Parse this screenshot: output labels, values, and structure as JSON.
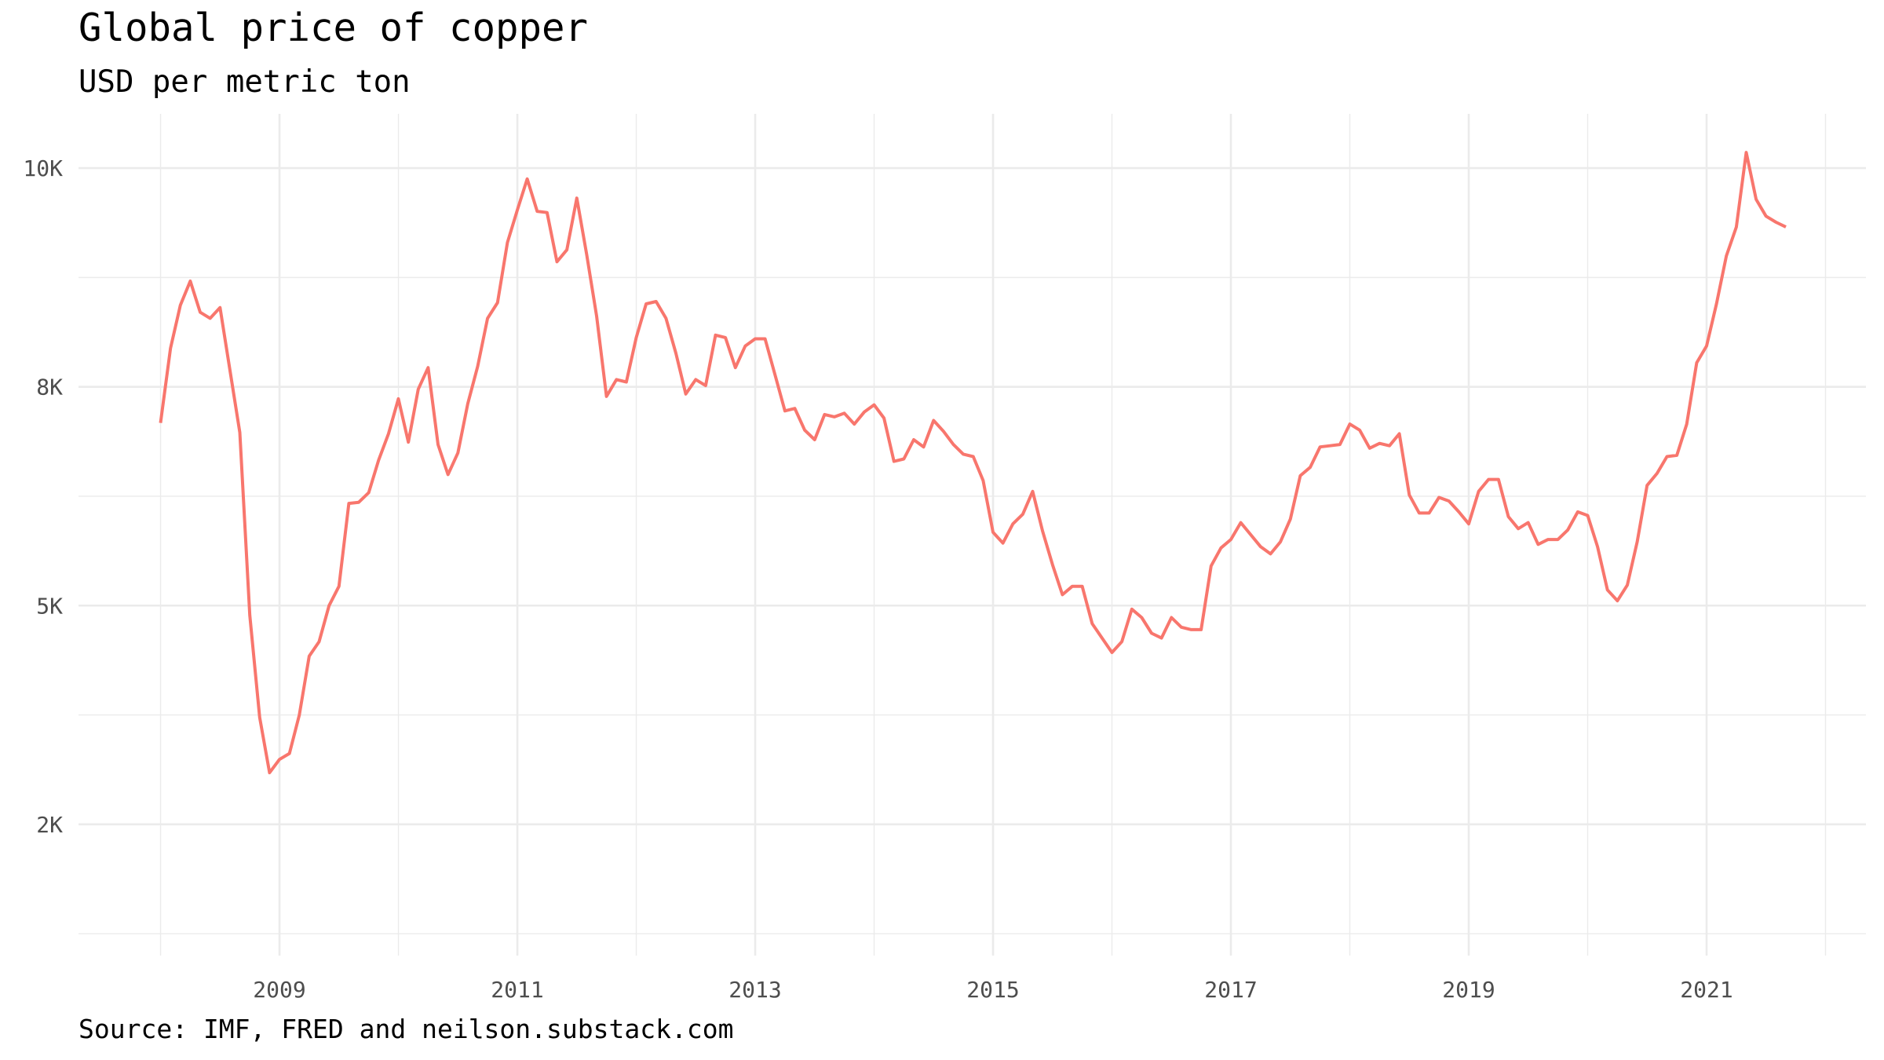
{
  "chart_data": {
    "type": "line",
    "title": "Global price of copper",
    "subtitle": "USD per metric ton",
    "caption": "Source: IMF, FRED and neilson.substack.com",
    "x": [
      "2008-01",
      "2008-02",
      "2008-03",
      "2008-04",
      "2008-05",
      "2008-06",
      "2008-07",
      "2008-08",
      "2008-09",
      "2008-10",
      "2008-11",
      "2008-12",
      "2009-01",
      "2009-02",
      "2009-03",
      "2009-04",
      "2009-05",
      "2009-06",
      "2009-07",
      "2009-08",
      "2009-09",
      "2009-10",
      "2009-11",
      "2009-12",
      "2010-01",
      "2010-02",
      "2010-03",
      "2010-04",
      "2010-05",
      "2010-06",
      "2010-07",
      "2010-08",
      "2010-09",
      "2010-10",
      "2010-11",
      "2010-12",
      "2011-01",
      "2011-02",
      "2011-03",
      "2011-04",
      "2011-05",
      "2011-06",
      "2011-07",
      "2011-08",
      "2011-09",
      "2011-10",
      "2011-11",
      "2011-12",
      "2012-01",
      "2012-02",
      "2012-03",
      "2012-04",
      "2012-05",
      "2012-06",
      "2012-07",
      "2012-08",
      "2012-09",
      "2012-10",
      "2012-11",
      "2012-12",
      "2013-01",
      "2013-02",
      "2013-03",
      "2013-04",
      "2013-05",
      "2013-06",
      "2013-07",
      "2013-08",
      "2013-09",
      "2013-10",
      "2013-11",
      "2013-12",
      "2014-01",
      "2014-02",
      "2014-03",
      "2014-04",
      "2014-05",
      "2014-06",
      "2014-07",
      "2014-08",
      "2014-09",
      "2014-10",
      "2014-11",
      "2014-12",
      "2015-01",
      "2015-02",
      "2015-03",
      "2015-04",
      "2015-05",
      "2015-06",
      "2015-07",
      "2015-08",
      "2015-09",
      "2015-10",
      "2015-11",
      "2015-12",
      "2016-01",
      "2016-02",
      "2016-03",
      "2016-04",
      "2016-05",
      "2016-06",
      "2016-07",
      "2016-08",
      "2016-09",
      "2016-10",
      "2016-11",
      "2016-12",
      "2017-01",
      "2017-02",
      "2017-03",
      "2017-04",
      "2017-05",
      "2017-06",
      "2017-07",
      "2017-08",
      "2017-09",
      "2017-10",
      "2017-11",
      "2017-12",
      "2018-01",
      "2018-02",
      "2018-03",
      "2018-04",
      "2018-05",
      "2018-06",
      "2018-07",
      "2018-08",
      "2018-09",
      "2018-10",
      "2018-11",
      "2018-12",
      "2019-01",
      "2019-02",
      "2019-03",
      "2019-04",
      "2019-05",
      "2019-06",
      "2019-07",
      "2019-08",
      "2019-09",
      "2019-10",
      "2019-11",
      "2019-12",
      "2020-01",
      "2020-02",
      "2020-03",
      "2020-04",
      "2020-05",
      "2020-06",
      "2020-07",
      "2020-08",
      "2020-09",
      "2020-10",
      "2020-11",
      "2020-12",
      "2021-01",
      "2021-02",
      "2021-03",
      "2021-04",
      "2021-05",
      "2021-06",
      "2021-07",
      "2021-08",
      "2021-09"
    ],
    "series": [
      {
        "name": "Copper",
        "color": "#F8766D",
        "values": [
          7088,
          7940,
          8434,
          8709,
          8352,
          8283,
          8406,
          7692,
          6978,
          4890,
          3722,
          3090,
          3242,
          3310,
          3750,
          4423,
          4588,
          5000,
          5220,
          6168,
          6181,
          6291,
          6662,
          6964,
          7363,
          6868,
          7473,
          7720,
          6841,
          6497,
          6745,
          7308,
          7734,
          8283,
          8462,
          9149,
          9520,
          9876,
          9506,
          9492,
          8929,
          9066,
          9657,
          9011,
          8310,
          7390,
          7583,
          7555,
          8063,
          8448,
          8475,
          8283,
          7885,
          7418,
          7583,
          7514,
          8091,
          8063,
          7720,
          7967,
          8049,
          8049,
          7637,
          7225,
          7253,
          7005,
          6896,
          7184,
          7157,
          7198,
          7074,
          7212,
          7294,
          7143,
          6648,
          6676,
          6896,
          6813,
          7116,
          6992,
          6841,
          6731,
          6703,
          6429,
          5838,
          5714,
          5934,
          6044,
          6305,
          5852,
          5467,
          5124,
          5220,
          5220,
          4794,
          4629,
          4464,
          4588,
          4959,
          4863,
          4684,
          4629,
          4863,
          4753,
          4725,
          4725,
          5453,
          5659,
          5755,
          5948,
          5810,
          5673,
          5591,
          5728,
          5989,
          6484,
          6580,
          6813,
          6827,
          6841,
          7074,
          7005,
          6799,
          6854,
          6827,
          6964,
          6264,
          6058,
          6058,
          6236,
          6195,
          6071,
          5934,
          6305,
          6442,
          6442,
          6016,
          5879,
          5948,
          5700,
          5755,
          5755,
          5865,
          6071,
          6030,
          5673,
          5179,
          5055,
          5234,
          5728,
          6374,
          6511,
          6703,
          6717,
          7074,
          7775,
          7967,
          8448,
          8997,
          9327,
          10179,
          9643,
          9451,
          9382,
          9327
        ]
      }
    ],
    "xlim": [
      2007.31,
      2022.34
    ],
    "xticks": [
      2009,
      2011,
      2013,
      2015,
      2017,
      2019,
      2021
    ],
    "x_minor_ticks": [
      2008,
      2010,
      2012,
      2014,
      2016,
      2018,
      2020,
      2022
    ],
    "ylim": [
      1000,
      10620
    ],
    "yticks": [
      {
        "value": 2500,
        "label": "2K"
      },
      {
        "value": 5000,
        "label": "5K"
      },
      {
        "value": 7500,
        "label": "8K"
      },
      {
        "value": 10000,
        "label": "10K"
      }
    ],
    "y_minor_ticks": [
      1250,
      3750,
      6250,
      8750
    ],
    "grid": true
  }
}
